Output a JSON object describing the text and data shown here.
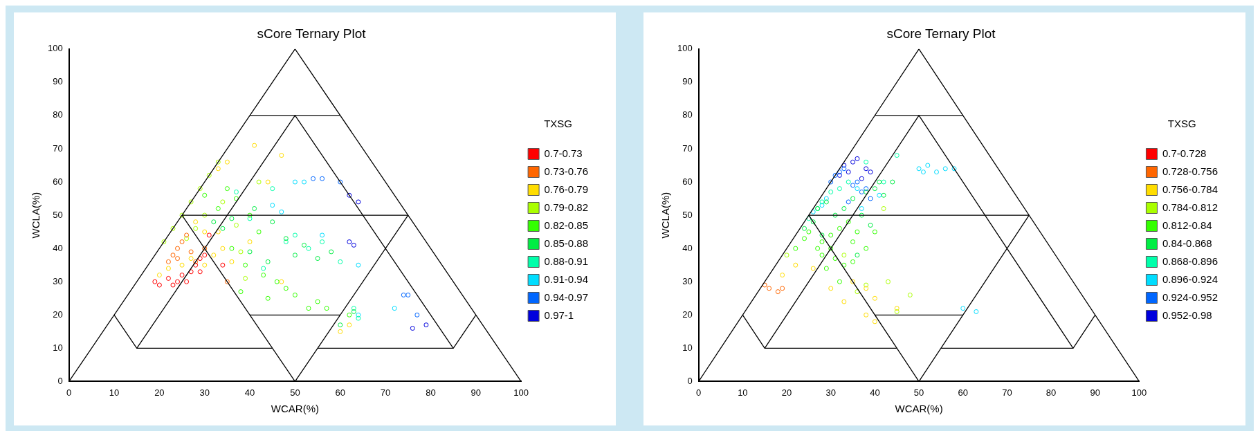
{
  "chart_data": [
    {
      "type": "scatter",
      "title": "sCore Ternary Plot",
      "xlabel": "WCAR(%)",
      "ylabel": "WCLA(%)",
      "legend_title": "TXSG",
      "legend": "right",
      "marker": "circle",
      "grid": false,
      "xlim": [
        0,
        100
      ],
      "ylim": [
        0,
        100
      ],
      "xticks": [
        0,
        10,
        20,
        30,
        40,
        50,
        60,
        70,
        80,
        90,
        100
      ],
      "yticks": [
        0,
        10,
        20,
        30,
        40,
        50,
        60,
        70,
        80,
        90,
        100
      ],
      "series": [
        {
          "type": "line",
          "marker": "none",
          "color": "#000000",
          "x": [
            0,
            50,
            100
          ],
          "values": [
            0,
            100,
            0
          ]
        },
        {
          "type": "line",
          "marker": "none",
          "color": "#000000",
          "x": [
            40,
            60
          ],
          "values": [
            80,
            80
          ]
        },
        {
          "type": "line",
          "marker": "none",
          "color": "#000000",
          "x": [
            10,
            15,
            35,
            50,
            65,
            85,
            90
          ],
          "values": [
            20,
            10,
            50,
            80,
            50,
            10,
            20
          ]
        },
        {
          "type": "line",
          "marker": "none",
          "color": "#000000",
          "x": [
            25,
            75
          ],
          "values": [
            50,
            50
          ]
        },
        {
          "type": "line",
          "marker": "none",
          "color": "#000000",
          "x": [
            25,
            50,
            75
          ],
          "values": [
            50,
            0,
            50
          ]
        },
        {
          "type": "line",
          "marker": "none",
          "color": "#000000",
          "x": [
            15,
            45
          ],
          "values": [
            10,
            10
          ]
        },
        {
          "type": "line",
          "marker": "none",
          "color": "#000000",
          "x": [
            55,
            85
          ],
          "values": [
            10,
            10
          ]
        },
        {
          "type": "line",
          "marker": "none",
          "color": "#000000",
          "x": [
            40,
            60
          ],
          "values": [
            20,
            20
          ]
        },
        {
          "name": "0.7-0.73",
          "color": "#ff0000",
          "x": [
            19,
            20,
            22,
            23,
            24,
            25,
            26,
            27,
            28,
            29,
            30,
            31,
            34,
            29
          ],
          "values": [
            30,
            29,
            31,
            29,
            30,
            32,
            30,
            33,
            35,
            37,
            38,
            44,
            35,
            33
          ]
        },
        {
          "name": "0.73-0.76",
          "color": "#ff6600",
          "x": [
            22,
            23,
            24,
            25,
            26,
            24,
            27,
            28,
            30,
            35
          ],
          "values": [
            36,
            38,
            40,
            42,
            44,
            37,
            39,
            36,
            40,
            30
          ]
        },
        {
          "name": "0.76-0.79",
          "color": "#ffdd00",
          "x": [
            20,
            22,
            25,
            27,
            30,
            32,
            34,
            30,
            33,
            36,
            28,
            33,
            35,
            41,
            47,
            44,
            47,
            62,
            60,
            40
          ],
          "values": [
            32,
            34,
            35,
            37,
            35,
            38,
            40,
            45,
            45,
            36,
            48,
            64,
            66,
            71,
            68,
            60,
            30,
            17,
            15,
            42
          ]
        },
        {
          "name": "0.79-0.82",
          "color": "#aaff00",
          "x": [
            21,
            23,
            25,
            27,
            29,
            31,
            33,
            26,
            28,
            30,
            34,
            37,
            42,
            39,
            38
          ],
          "values": [
            42,
            46,
            50,
            54,
            58,
            62,
            66,
            43,
            46,
            50,
            54,
            47,
            60,
            31,
            39
          ]
        },
        {
          "name": "0.82-0.85",
          "color": "#33ff00",
          "x": [
            30,
            33,
            35,
            37,
            40,
            42,
            36,
            39,
            43,
            46,
            48,
            50,
            44,
            53,
            57,
            55,
            62,
            38
          ],
          "values": [
            56,
            52,
            58,
            55,
            50,
            45,
            40,
            35,
            32,
            30,
            28,
            26,
            25,
            22,
            22,
            24,
            20,
            27
          ]
        },
        {
          "name": "0.85-0.88",
          "color": "#00ee44",
          "x": [
            32,
            34,
            36,
            41,
            45,
            48,
            40,
            44,
            50,
            52,
            55,
            58,
            63,
            60
          ],
          "values": [
            48,
            46,
            49,
            52,
            48,
            43,
            39,
            36,
            38,
            41,
            37,
            39,
            21,
            17
          ]
        },
        {
          "name": "0.88-0.91",
          "color": "#00ffaa",
          "x": [
            37,
            45,
            48,
            50,
            53,
            56,
            43,
            60,
            64,
            40,
            63
          ],
          "values": [
            57,
            58,
            42,
            44,
            40,
            42,
            34,
            36,
            19,
            49,
            22
          ]
        },
        {
          "name": "0.91-0.94",
          "color": "#00ddff",
          "x": [
            50,
            52,
            45,
            56,
            64,
            47,
            72,
            64
          ],
          "values": [
            60,
            60,
            53,
            44,
            35,
            51,
            22,
            20
          ]
        },
        {
          "name": "0.94-0.97",
          "color": "#0066ff",
          "x": [
            54,
            56,
            60,
            74,
            75,
            77
          ],
          "values": [
            61,
            61,
            60,
            26,
            26,
            20
          ]
        },
        {
          "name": "0.97-1",
          "color": "#0000dd",
          "x": [
            62,
            64,
            62,
            63,
            79,
            76
          ],
          "values": [
            56,
            54,
            42,
            41,
            17,
            16
          ]
        }
      ]
    },
    {
      "type": "scatter",
      "title": "sCore Ternary Plot",
      "xlabel": "WCAR(%)",
      "ylabel": "WCLA(%)",
      "legend_title": "TXSG",
      "legend": "right",
      "marker": "circle",
      "grid": false,
      "xlim": [
        0,
        100
      ],
      "ylim": [
        0,
        100
      ],
      "xticks": [
        0,
        10,
        20,
        30,
        40,
        50,
        60,
        70,
        80,
        90,
        100
      ],
      "yticks": [
        0,
        10,
        20,
        30,
        40,
        50,
        60,
        70,
        80,
        90,
        100
      ],
      "series": [
        {
          "type": "line",
          "marker": "none",
          "color": "#000000",
          "x": [
            0,
            50,
            100
          ],
          "values": [
            0,
            100,
            0
          ]
        },
        {
          "type": "line",
          "marker": "none",
          "color": "#000000",
          "x": [
            40,
            60
          ],
          "values": [
            80,
            80
          ]
        },
        {
          "type": "line",
          "marker": "none",
          "color": "#000000",
          "x": [
            10,
            15,
            35,
            50,
            65,
            85,
            90
          ],
          "values": [
            20,
            10,
            50,
            80,
            50,
            10,
            20
          ]
        },
        {
          "type": "line",
          "marker": "none",
          "color": "#000000",
          "x": [
            25,
            75
          ],
          "values": [
            50,
            50
          ]
        },
        {
          "type": "line",
          "marker": "none",
          "color": "#000000",
          "x": [
            25,
            50,
            75
          ],
          "values": [
            50,
            0,
            50
          ]
        },
        {
          "type": "line",
          "marker": "none",
          "color": "#000000",
          "x": [
            15,
            45
          ],
          "values": [
            10,
            10
          ]
        },
        {
          "type": "line",
          "marker": "none",
          "color": "#000000",
          "x": [
            55,
            85
          ],
          "values": [
            10,
            10
          ]
        },
        {
          "type": "line",
          "marker": "none",
          "color": "#000000",
          "x": [
            40,
            60
          ],
          "values": [
            20,
            20
          ]
        },
        {
          "name": "0.7-0.728",
          "color": "#ff0000"
        },
        {
          "name": "0.728-0.756",
          "color": "#ff6600",
          "x": [
            15,
            16,
            18,
            19
          ],
          "values": [
            29,
            28,
            27,
            28
          ]
        },
        {
          "name": "0.756-0.784",
          "color": "#ffdd00",
          "x": [
            19,
            22,
            30,
            35,
            38,
            40,
            38,
            40,
            45,
            33,
            26
          ],
          "values": [
            32,
            35,
            28,
            30,
            28,
            25,
            20,
            18,
            22,
            24,
            34
          ]
        },
        {
          "name": "0.784-0.812",
          "color": "#aaff00",
          "x": [
            20,
            36,
            38,
            43,
            45,
            48,
            33,
            42
          ],
          "values": [
            38,
            27,
            29,
            30,
            21,
            26,
            38,
            52
          ]
        },
        {
          "name": "0.812-0.84",
          "color": "#33ff00",
          "x": [
            22,
            24,
            25,
            27,
            28,
            30,
            32,
            34,
            28,
            31,
            30,
            35,
            33,
            36,
            29,
            32,
            35,
            38,
            40
          ],
          "values": [
            40,
            43,
            45,
            40,
            42,
            44,
            46,
            48,
            38,
            37,
            40,
            42,
            35,
            45,
            34,
            30,
            36,
            40,
            45
          ]
        },
        {
          "name": "0.84-0.868",
          "color": "#00ee44",
          "x": [
            24,
            26,
            27,
            29,
            31,
            33,
            35,
            37,
            38,
            40,
            42,
            39,
            36,
            41,
            44,
            28
          ],
          "values": [
            46,
            48,
            52,
            54,
            50,
            52,
            55,
            50,
            57,
            58,
            56,
            47,
            38,
            60,
            60,
            44
          ]
        },
        {
          "name": "0.868-0.896",
          "color": "#00ffaa",
          "x": [
            25,
            27,
            28,
            30,
            32,
            34,
            38,
            45,
            42
          ],
          "values": [
            49,
            52,
            54,
            57,
            58,
            60,
            66,
            68,
            60
          ]
        },
        {
          "name": "0.896-0.924",
          "color": "#00ddff",
          "x": [
            26,
            28,
            29,
            50,
            52,
            54,
            56,
            58,
            51,
            41,
            36,
            37,
            60,
            63
          ],
          "values": [
            51,
            53,
            55,
            64,
            65,
            63,
            64,
            64,
            63,
            56,
            58,
            52,
            22,
            21
          ]
        },
        {
          "name": "0.924-0.952",
          "color": "#0066ff",
          "x": [
            30,
            31,
            32,
            33,
            35,
            36,
            38,
            39,
            37,
            34
          ],
          "values": [
            60,
            62,
            63,
            64,
            59,
            60,
            58,
            55,
            57,
            54
          ]
        },
        {
          "name": "0.952-0.98",
          "color": "#0000dd",
          "x": [
            33,
            35,
            36,
            38,
            39,
            37,
            32,
            34
          ],
          "values": [
            65,
            66,
            67,
            64,
            63,
            61,
            62,
            63
          ]
        }
      ]
    }
  ]
}
